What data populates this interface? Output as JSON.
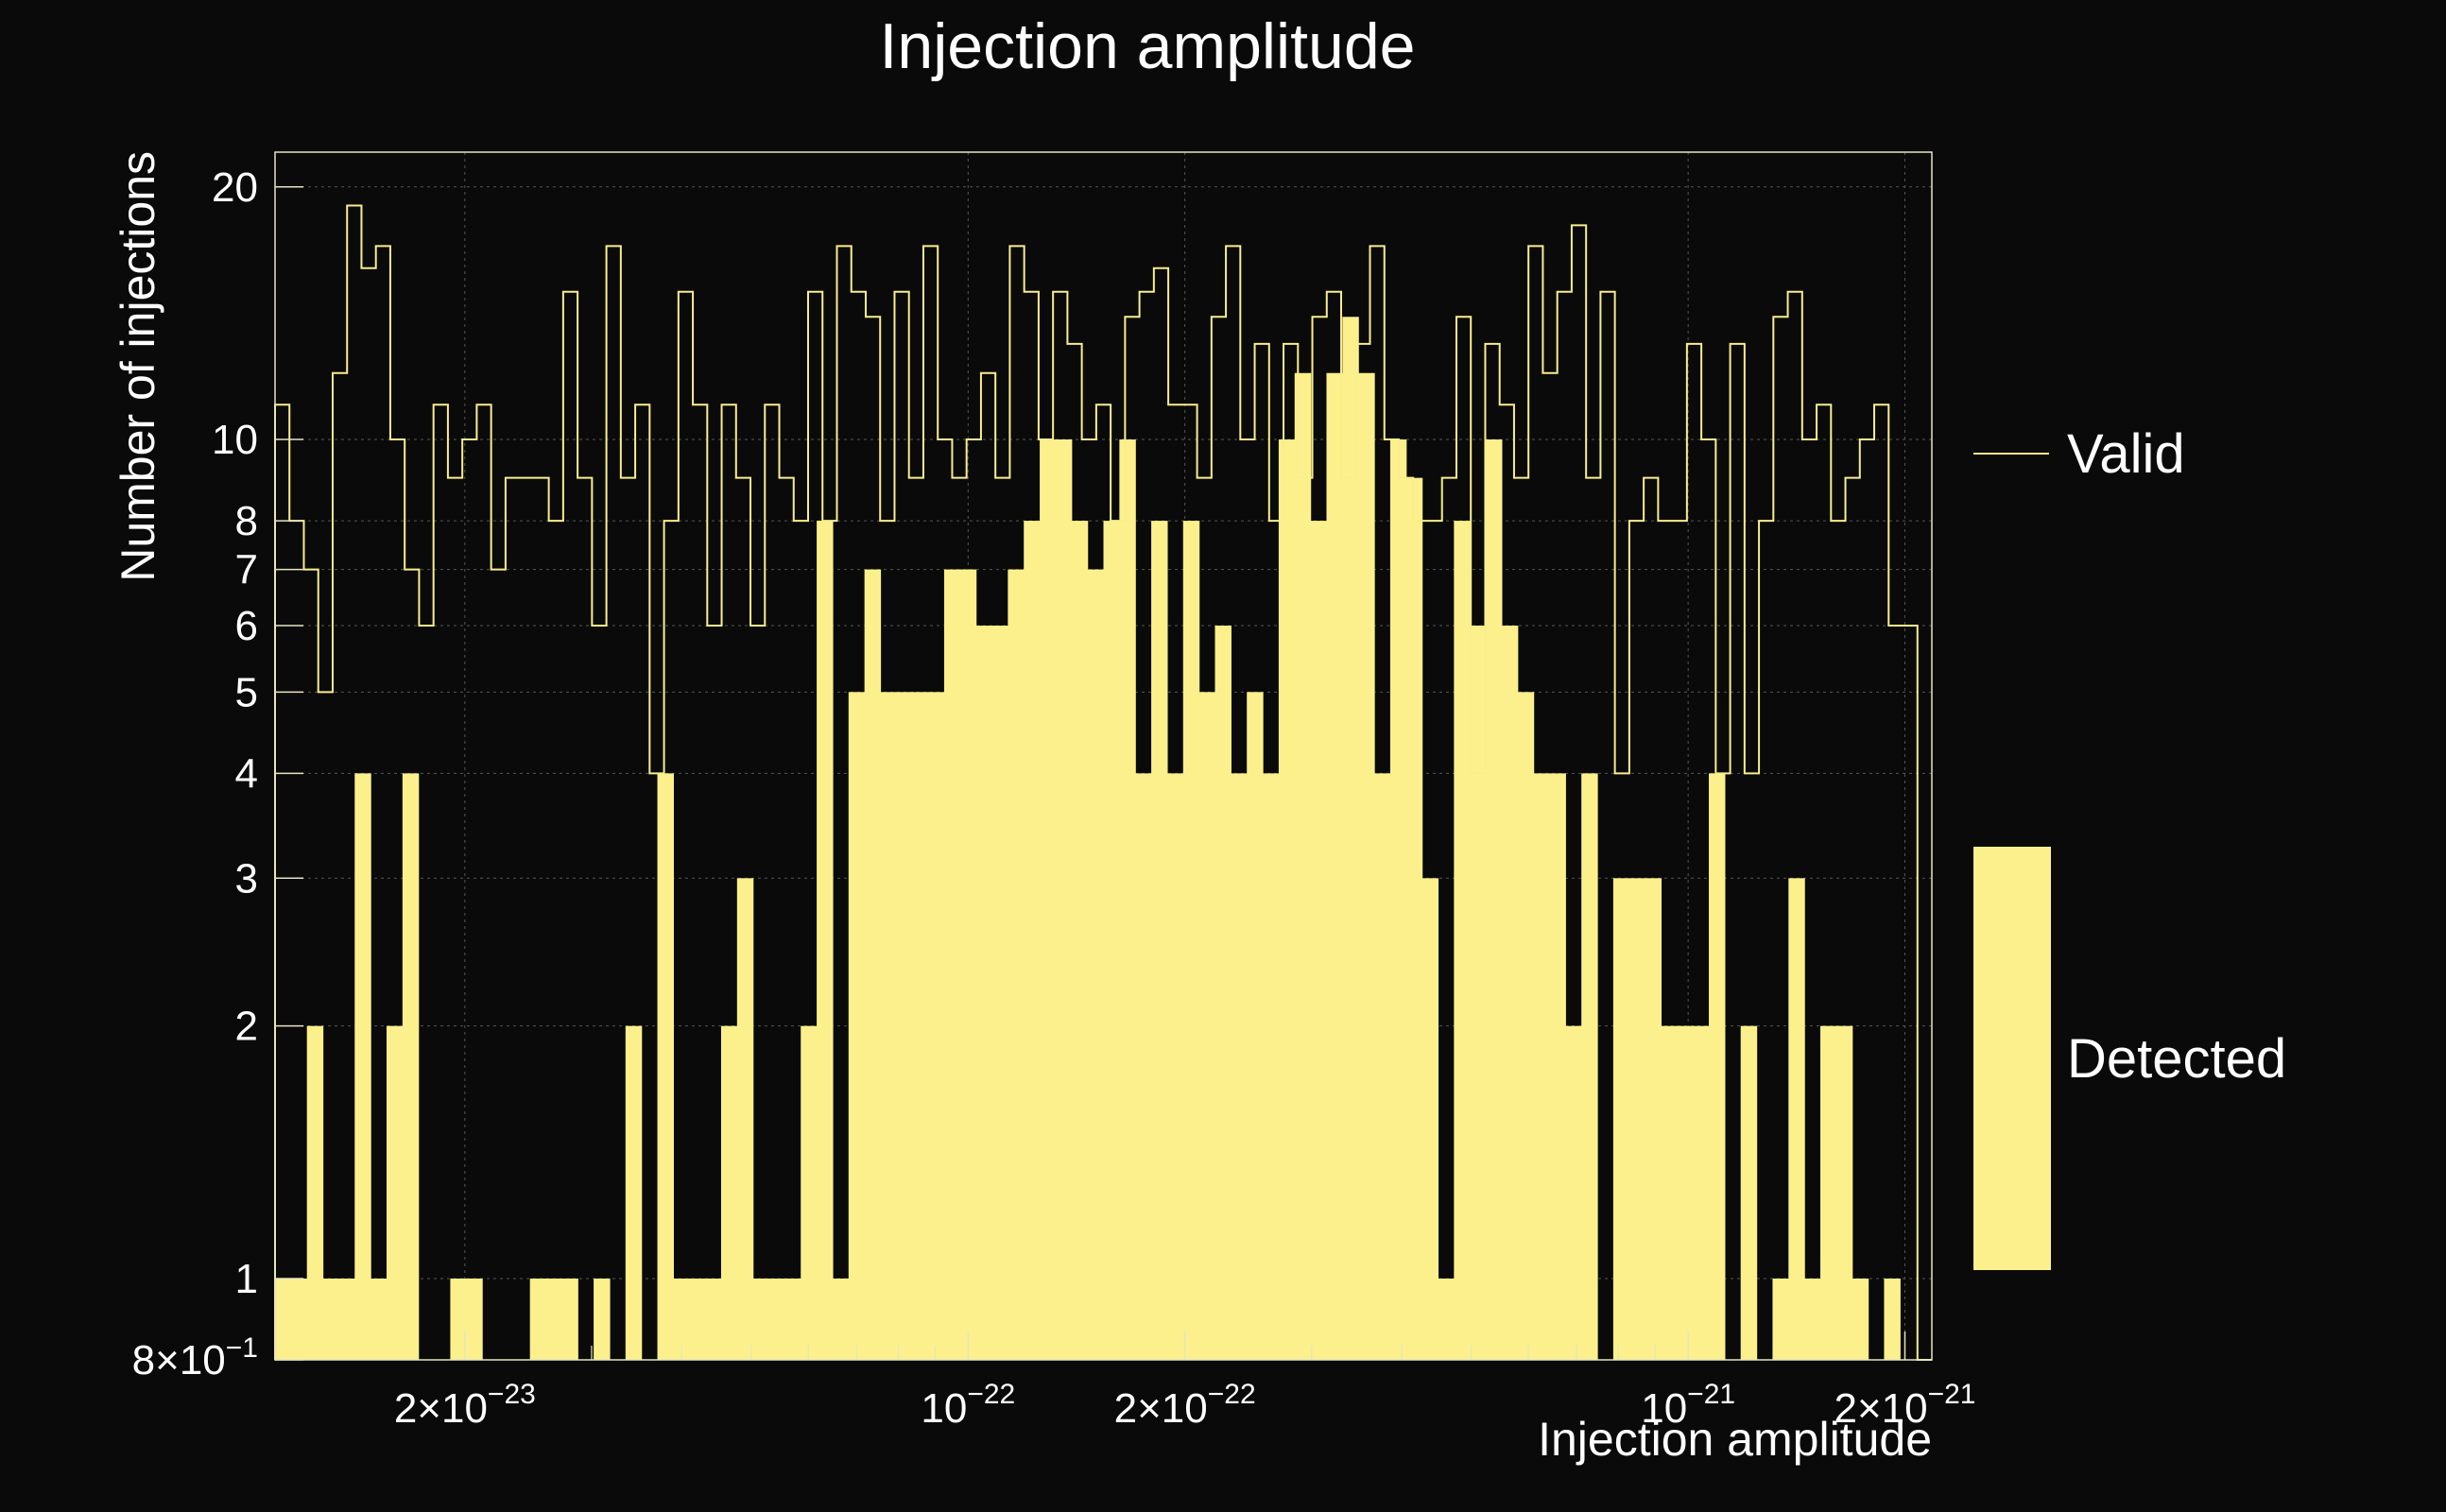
{
  "colors": {
    "background": "#0a0a0a",
    "valid_line": "#f9ee8d",
    "detected_fill": "#fbf08b",
    "text": "#ffffff",
    "grid": "#555555"
  },
  "chart_data": {
    "type": "bar",
    "title": "Injection amplitude",
    "xlabel": "Injection amplitude",
    "ylabel": "Number of injections",
    "x_scale": "log",
    "y_scale": "log",
    "xlim": [
      1.09e-23,
      2.18e-21
    ],
    "ylim": [
      0.8,
      22
    ],
    "grid": true,
    "legend_position": "right",
    "x_ticks": [
      {
        "value": 2e-23,
        "mantissa": "2",
        "exponent": "−23"
      },
      {
        "value": 1e-22,
        "mantissa": "",
        "exponent": "−22"
      },
      {
        "value": 2e-22,
        "mantissa": "2",
        "exponent": "−22"
      },
      {
        "value": 1e-21,
        "mantissa": "",
        "exponent": "−21"
      },
      {
        "value": 2e-21,
        "mantissa": "2",
        "exponent": "−21"
      }
    ],
    "y_ticks": [
      {
        "value": 0.8,
        "label": "8×10",
        "exponent": "−1"
      },
      {
        "value": 1,
        "label": "1"
      },
      {
        "value": 2,
        "label": "2"
      },
      {
        "value": 3,
        "label": "3"
      },
      {
        "value": 4,
        "label": "4"
      },
      {
        "value": 5,
        "label": "5"
      },
      {
        "value": 6,
        "label": "6"
      },
      {
        "value": 7,
        "label": "7"
      },
      {
        "value": 8,
        "label": "8"
      },
      {
        "value": 10,
        "label": "10"
      },
      {
        "value": 20,
        "label": "20"
      }
    ],
    "series": [
      {
        "name": "Valid",
        "style": "step",
        "values": [
          11,
          8,
          7,
          5,
          12,
          19,
          16,
          17,
          10,
          7,
          6,
          11,
          9,
          10,
          11,
          7,
          9,
          9,
          9,
          8,
          15,
          9,
          6,
          17,
          9,
          11,
          4,
          8,
          15,
          11,
          6,
          11,
          9,
          6,
          11,
          9,
          8,
          15,
          8,
          17,
          15,
          14,
          8,
          15,
          9,
          17,
          10,
          9,
          10,
          12,
          9,
          17,
          15,
          10,
          15,
          13,
          10,
          11,
          8,
          14,
          15,
          16,
          11,
          11,
          9,
          14,
          17,
          10,
          13,
          8,
          13,
          9,
          14,
          15,
          9,
          13,
          17,
          10,
          9,
          8,
          8,
          9,
          14,
          4,
          13,
          11,
          9,
          17,
          12,
          15,
          18,
          9,
          15,
          4,
          8,
          9,
          8,
          8,
          13,
          10,
          4,
          13,
          4,
          8,
          14,
          15,
          10,
          11,
          8,
          9,
          10,
          11,
          6,
          6,
          0.8
        ],
        "x_start": 1.09e-23,
        "x_end": 2.18e-21
      },
      {
        "name": "Detected",
        "style": "filled",
        "values": [
          1,
          1,
          2,
          1,
          1,
          4,
          1,
          2,
          4,
          0.8,
          0.8,
          1,
          1,
          0.8,
          0.8,
          0.8,
          1,
          1,
          1,
          0.8,
          1,
          0.8,
          2,
          0.8,
          4,
          1,
          1,
          1,
          2,
          3,
          1,
          1,
          1,
          2,
          8,
          1,
          5,
          7,
          5,
          5,
          5,
          5,
          7,
          7,
          6,
          6,
          7,
          8,
          10,
          10,
          8,
          7,
          8,
          10,
          4,
          8,
          4,
          8,
          5,
          6,
          4,
          5,
          4,
          10,
          12,
          8,
          12,
          14,
          12,
          4,
          10,
          9,
          3,
          1,
          8,
          6,
          10,
          6,
          5,
          4,
          4,
          2,
          4,
          0.8,
          3,
          3,
          3,
          2,
          2,
          2,
          4,
          0.8,
          2,
          0.8,
          1,
          3,
          1,
          2,
          2,
          1,
          0.8,
          1,
          0.8,
          0.8
        ],
        "x_start": 1.09e-23,
        "x_end": 2.18e-21
      }
    ]
  }
}
